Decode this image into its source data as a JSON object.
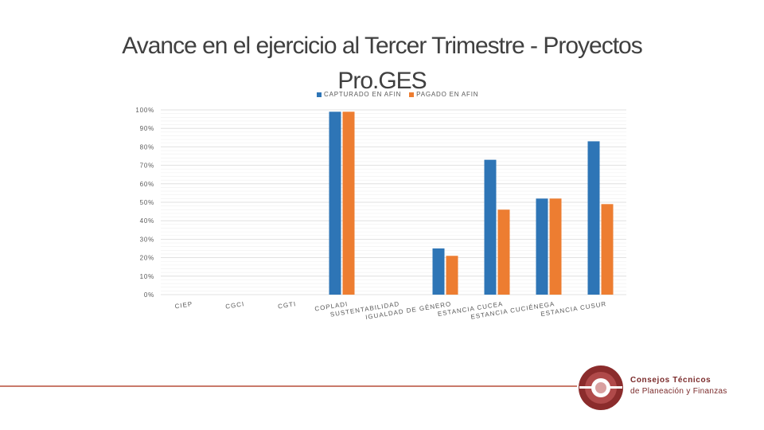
{
  "header": {
    "title_line1": "Avance en el ejercicio al Tercer Trimestre - Proyectos",
    "title_line2": "Pro.GES"
  },
  "branding": {
    "line1": "Consejos Técnicos",
    "line2": "de Planeación y Finanzas"
  },
  "colors": {
    "series1": "#2e75b6",
    "series2": "#ed7d31",
    "grid": "#d9d9d9",
    "logo": "#8b2c2c"
  },
  "chart_data": {
    "type": "bar",
    "title": "Avance en el ejercicio al Tercer Trimestre - Proyectos Pro.GES",
    "xlabel": "",
    "ylabel": "",
    "ylim": [
      0,
      100
    ],
    "yticks": [
      "0%",
      "10%",
      "20%",
      "30%",
      "40%",
      "50%",
      "60%",
      "70%",
      "80%",
      "90%",
      "100%"
    ],
    "grid": true,
    "legend_position": "top-center",
    "categories": [
      "CIEP",
      "CGCI",
      "CGTI",
      "COPLADI",
      "SUSTENTABILIDAD",
      "IGUALDAD DE GÉNERO",
      "ESTANCIA CUCEA",
      "ESTANCIA CUCIÉNEGA",
      "ESTANCIA CUSUR"
    ],
    "series": [
      {
        "name": "CAPTURADO EN AFIN",
        "values": [
          0,
          0,
          0,
          99,
          0,
          25,
          73,
          52,
          83
        ]
      },
      {
        "name": "PAGADO EN AFIN",
        "values": [
          0,
          0,
          0,
          99,
          0,
          21,
          46,
          52,
          49
        ]
      }
    ]
  }
}
